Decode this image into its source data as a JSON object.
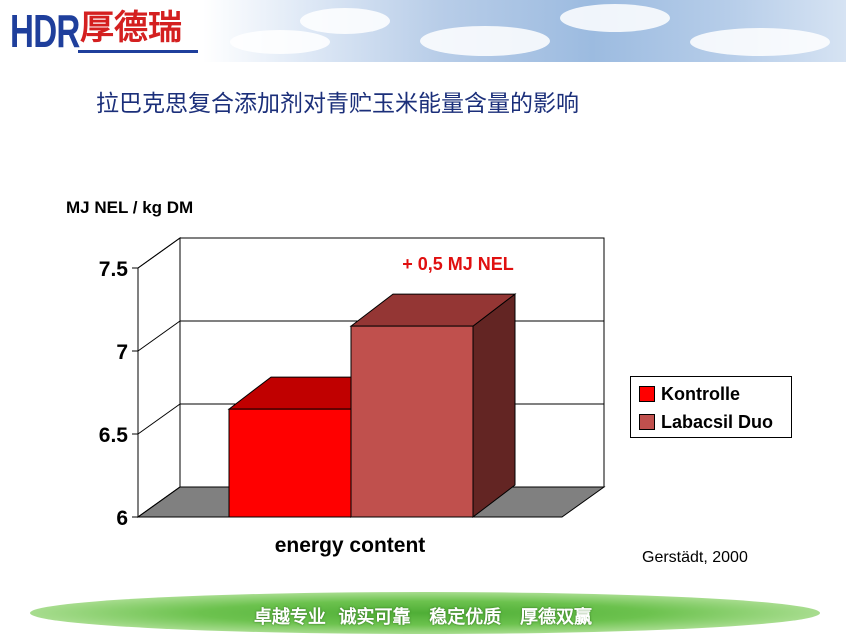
{
  "header": {
    "logo_latin": "HDR",
    "logo_chinese": "厚德瑞"
  },
  "title": "拉巴克思复合添加剂对青贮玉米能量含量的影响",
  "footer": {
    "slogan": "卓越专业  诚实可靠   稳定优质   厚德双赢"
  },
  "source": "Gerstädt, 2000",
  "colors": {
    "kontrolle": "#ff0000",
    "labacsil": "#c0504d",
    "grid": "#000000",
    "floor": "#808080"
  },
  "chart_data": {
    "type": "bar",
    "categories": [
      "energy content"
    ],
    "ylabel": "MJ NEL / kg DM",
    "ylim": [
      6,
      7.5
    ],
    "yticks": [
      "6",
      "6.5",
      "7",
      "7.5"
    ],
    "series": [
      {
        "name": "Kontrolle",
        "values": [
          6.65
        ]
      },
      {
        "name": "Labacsil Duo",
        "values": [
          7.15
        ]
      }
    ],
    "annotation": "+ 0,5 MJ NEL",
    "legend_position": "right",
    "grid": true
  }
}
